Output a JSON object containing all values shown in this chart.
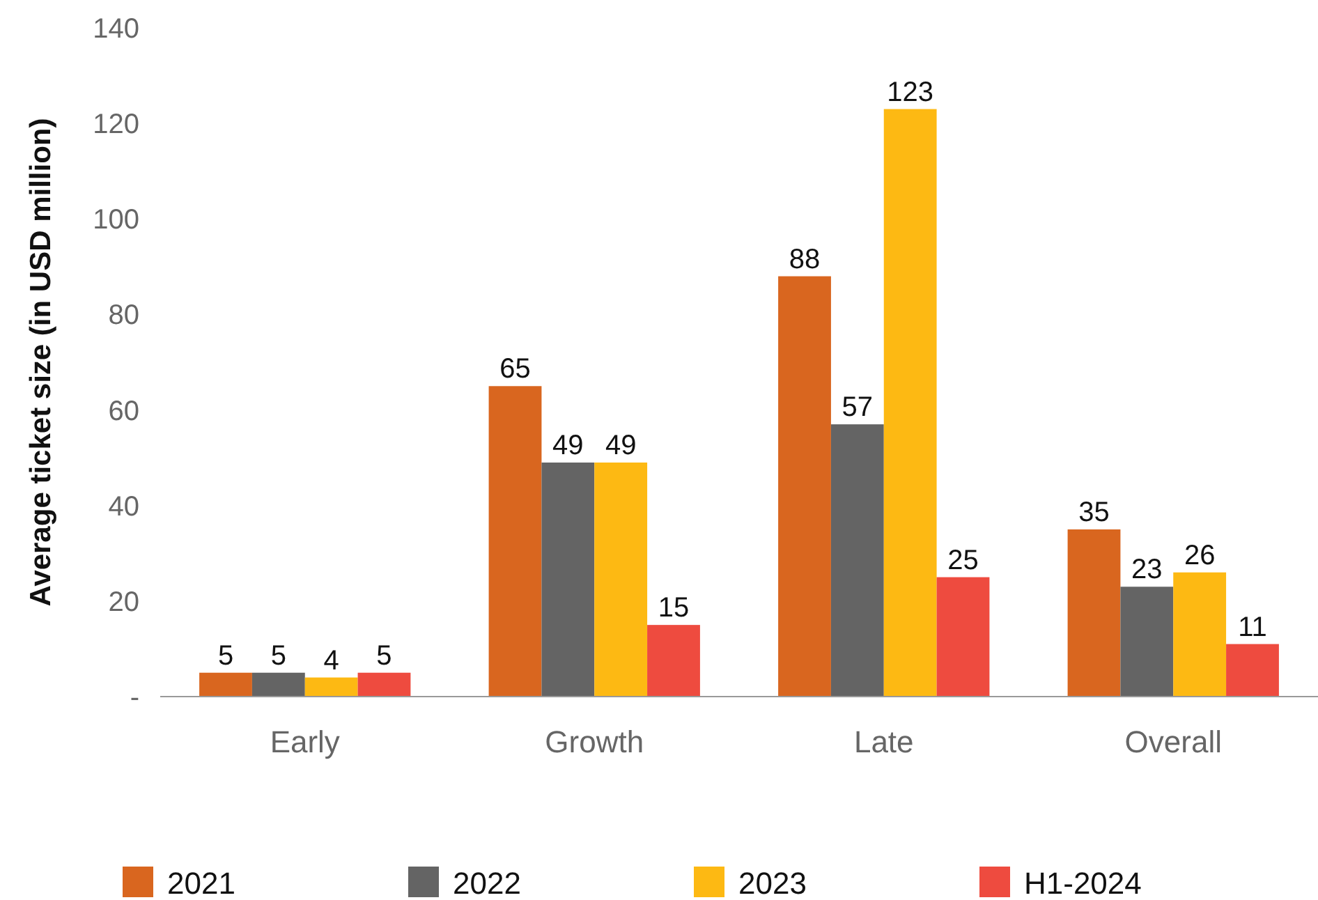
{
  "chart_data": {
    "type": "bar",
    "ylabel": "Average ticket size (in USD million)",
    "categories": [
      "Early",
      "Growth",
      "Late",
      "Overall"
    ],
    "series": [
      {
        "name": "2021",
        "color": "#d9661f",
        "values": [
          5,
          65,
          88,
          35
        ]
      },
      {
        "name": "2022",
        "color": "#646464",
        "values": [
          5,
          49,
          57,
          23
        ]
      },
      {
        "name": "2023",
        "color": "#fdb913",
        "values": [
          4,
          49,
          123,
          26
        ]
      },
      {
        "name": "H1-2024",
        "color": "#ee4b3f",
        "values": [
          5,
          15,
          25,
          11
        ]
      }
    ],
    "ylim": [
      0,
      140
    ],
    "yticks": [
      {
        "value": 0,
        "label": "-"
      },
      20,
      40,
      60,
      80,
      100,
      120,
      140
    ],
    "data_labels": true,
    "legend": "bottom",
    "grid": false
  }
}
